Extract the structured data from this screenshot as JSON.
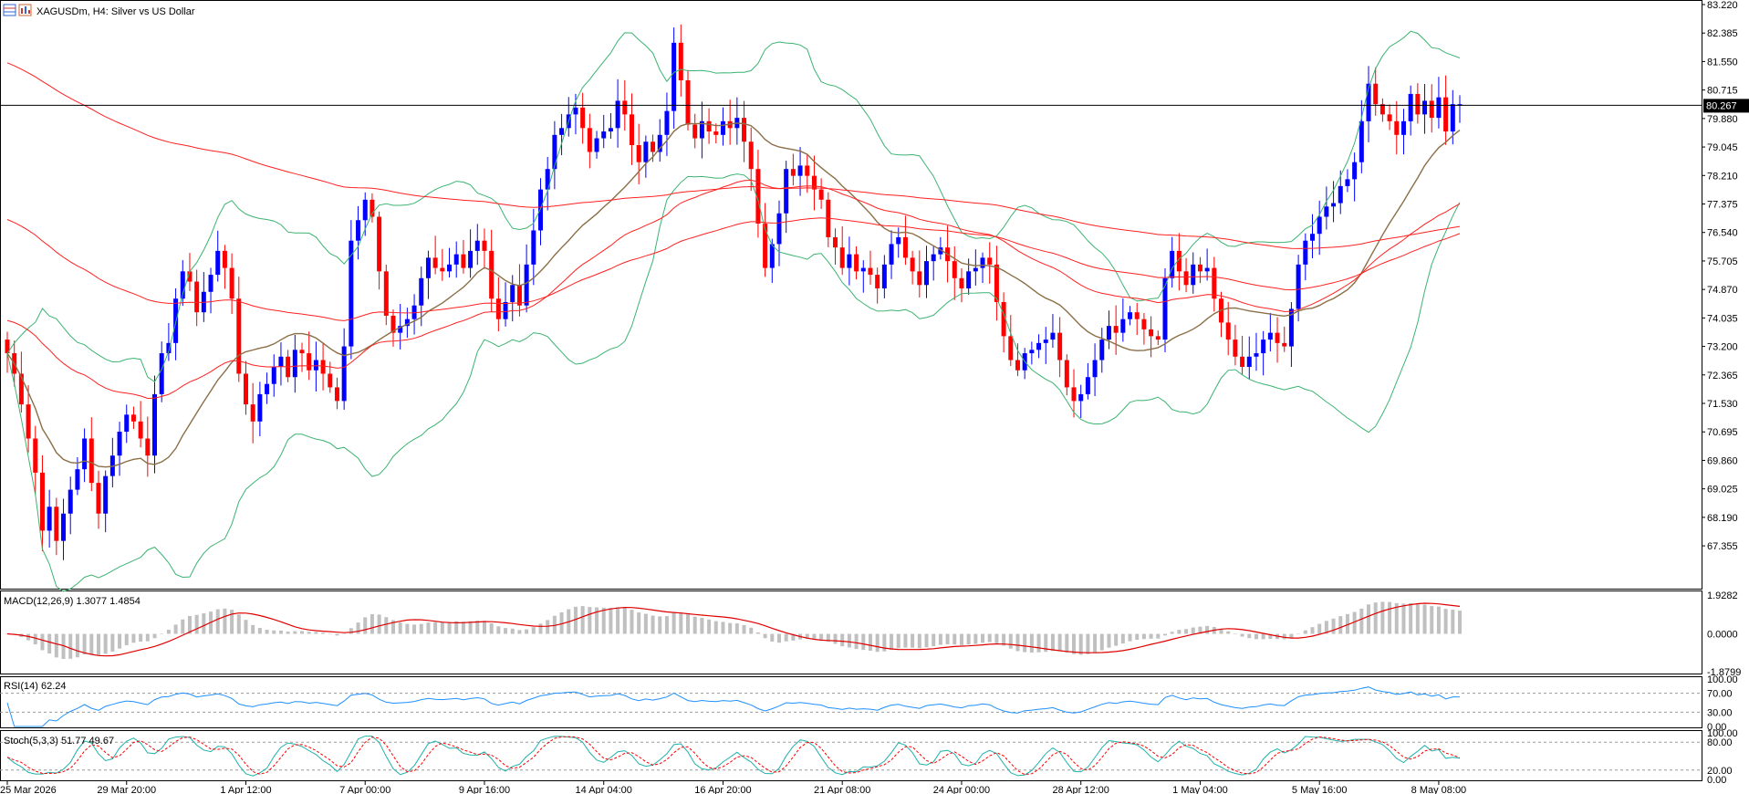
{
  "window": {
    "title": "XAGUSDm, H4:  Silver vs US Dollar",
    "icons": [
      "grid-icon",
      "bar-chart-icon"
    ]
  },
  "colors": {
    "bull": "#0000ff",
    "bear": "#ff0000",
    "ma_fast": "#8b6f47",
    "ma_red": "#ff2020",
    "bollinger": "#3cb371",
    "hline": "#000000",
    "macd_hist": "#c0c0c0",
    "macd_signal": "#e00000",
    "rsi": "#1e90ff",
    "stoch_main": "#20b2aa",
    "stoch_signal": "#ff0000"
  },
  "chart_data": {
    "type": "candlestick",
    "symbol": "XAGUSDm",
    "timeframe": "H4",
    "description": "Silver vs US Dollar",
    "current_price": 80.267,
    "price_axis_ticks": [
      "83.220",
      "82.385",
      "81.550",
      "80.715",
      "79.880",
      "79.045",
      "78.210",
      "77.375",
      "76.540",
      "75.705",
      "74.870",
      "74.035",
      "73.200",
      "72.365",
      "71.530",
      "70.695",
      "69.860",
      "69.025",
      "68.190",
      "67.355"
    ],
    "ylim": [
      66.1,
      83.3
    ],
    "time_axis_ticks": [
      "25 Mar 2026",
      "29 Mar 20:00",
      "1 Apr 12:00",
      "7 Apr 00:00",
      "9 Apr 16:00",
      "14 Apr 04:00",
      "16 Apr 20:00",
      "21 Apr 08:00",
      "24 Apr 00:00",
      "28 Apr 12:00",
      "1 May 04:00",
      "5 May 16:00",
      "8 May 08:00"
    ],
    "closes": [
      73.0,
      72.4,
      71.5,
      70.5,
      69.5,
      67.8,
      68.5,
      67.5,
      68.3,
      69.0,
      69.6,
      70.5,
      69.2,
      68.3,
      69.4,
      70.0,
      70.7,
      71.2,
      71.0,
      70.5,
      70.0,
      71.8,
      73.0,
      73.3,
      74.6,
      75.4,
      75.1,
      74.2,
      74.8,
      75.3,
      76.0,
      75.5,
      74.6,
      72.4,
      71.5,
      71.0,
      71.8,
      72.1,
      72.6,
      72.9,
      72.3,
      73.1,
      73.0,
      72.5,
      72.8,
      72.4,
      72.0,
      71.6,
      73.2,
      76.3,
      76.9,
      77.5,
      77.0,
      75.4,
      74.1,
      73.6,
      73.8,
      74.0,
      74.4,
      75.2,
      75.8,
      75.5,
      75.4,
      75.6,
      75.9,
      75.5,
      76.0,
      76.3,
      76.0,
      74.6,
      74.0,
      74.5,
      75.0,
      74.4,
      75.6,
      76.6,
      77.8,
      78.4,
      79.4,
      79.6,
      80.0,
      80.2,
      79.6,
      78.9,
      79.3,
      79.5,
      79.6,
      80.4,
      80.0,
      79.1,
      78.6,
      79.2,
      78.9,
      79.4,
      80.1,
      82.1,
      81.0,
      79.7,
      79.3,
      79.8,
      79.5,
      79.4,
      79.8,
      79.6,
      79.9,
      79.2,
      78.4,
      76.8,
      75.5,
      76.2,
      77.1,
      78.4,
      78.2,
      78.5,
      78.2,
      77.8,
      77.5,
      76.4,
      76.1,
      75.5,
      75.9,
      75.4,
      75.5,
      75.3,
      74.9,
      75.6,
      76.2,
      76.4,
      75.8,
      75.4,
      75.0,
      75.7,
      75.9,
      76.1,
      75.7,
      75.2,
      74.9,
      75.4,
      75.5,
      75.8,
      75.6,
      74.5,
      73.5,
      72.8,
      72.5,
      73.0,
      73.1,
      73.3,
      73.4,
      73.6,
      72.8,
      72.0,
      71.6,
      71.8,
      72.3,
      72.8,
      73.4,
      73.8,
      73.6,
      74.0,
      74.2,
      74.0,
      73.7,
      73.5,
      73.4,
      75.2,
      76.0,
      75.4,
      75.0,
      75.6,
      75.4,
      75.5,
      74.6,
      73.9,
      73.4,
      72.9,
      72.6,
      72.9,
      73.0,
      73.4,
      73.6,
      73.3,
      73.2,
      74.3,
      75.6,
      76.3,
      76.5,
      77.0,
      77.3,
      77.4,
      77.9,
      78.1,
      78.6,
      79.8,
      80.9,
      80.3,
      80.0,
      79.8,
      79.4,
      79.8,
      80.6,
      80.0,
      80.4,
      79.9,
      80.5,
      79.5,
      80.3,
      80.3
    ],
    "rsi_levels": [
      70,
      30
    ],
    "stoch_levels": [
      80,
      20
    ]
  },
  "indicators": {
    "price_label": "80.267",
    "macd": {
      "label": "MACD(12,26,9) 1.3077 1.4854",
      "axis_ticks": [
        "1.9282",
        "0.0000",
        "-1.8799"
      ]
    },
    "rsi": {
      "label": "RSI(14) 62.24",
      "axis_ticks": [
        "100.00",
        "70.00",
        "30.00",
        "0.00"
      ]
    },
    "stoch": {
      "label": "Stoch(5,3,3) 51.77 49.67",
      "axis_ticks": [
        "100.00",
        "80.00",
        "20.00",
        "0.00"
      ]
    }
  }
}
